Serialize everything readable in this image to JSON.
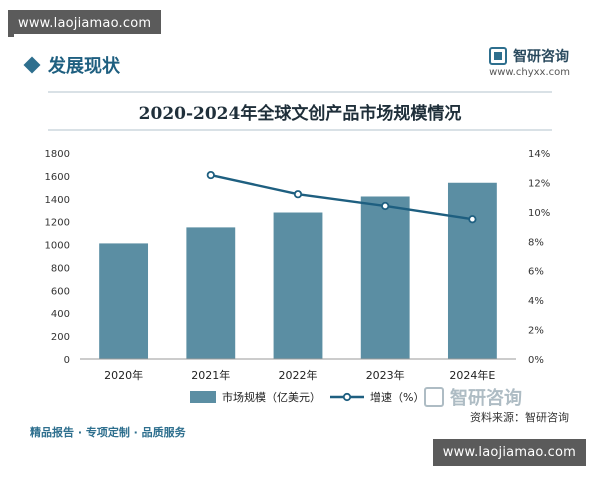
{
  "watermark": {
    "url": "www.laojiamao.com",
    "brand_name": "智研咨询",
    "brand_url": "www.chyxx.com"
  },
  "header": {
    "section_title": "发展现状"
  },
  "chart_data": {
    "type": "bar",
    "title": "2020-2024年全球文创产品市场规模情况",
    "categories": [
      "2020年",
      "2021年",
      "2022年",
      "2023年",
      "2024年E"
    ],
    "series": [
      {
        "name": "市场规模（亿美元）",
        "type": "bar",
        "axis": "left",
        "color": "#5b8ea3",
        "values": [
          1010,
          1150,
          1280,
          1420,
          1540
        ]
      },
      {
        "name": "增速（%）",
        "type": "line",
        "axis": "right",
        "color": "#1e5f80",
        "values": [
          null,
          12.5,
          11.2,
          10.4,
          9.5
        ]
      }
    ],
    "ylim_left": [
      0,
      1800
    ],
    "yticks_left": [
      "0",
      "200",
      "400",
      "600",
      "800",
      "1000",
      "1200",
      "1400",
      "1600",
      "1800"
    ],
    "ylim_right": [
      0,
      14
    ],
    "yticks_right": [
      "0%",
      "2%",
      "4%",
      "6%",
      "8%",
      "10%",
      "12%",
      "14%"
    ],
    "legend_position": "bottom",
    "grid": false
  },
  "footer": {
    "tagline": "精品报告 · 专项定制 · 品质服务",
    "source": "资料来源：智研咨询"
  }
}
